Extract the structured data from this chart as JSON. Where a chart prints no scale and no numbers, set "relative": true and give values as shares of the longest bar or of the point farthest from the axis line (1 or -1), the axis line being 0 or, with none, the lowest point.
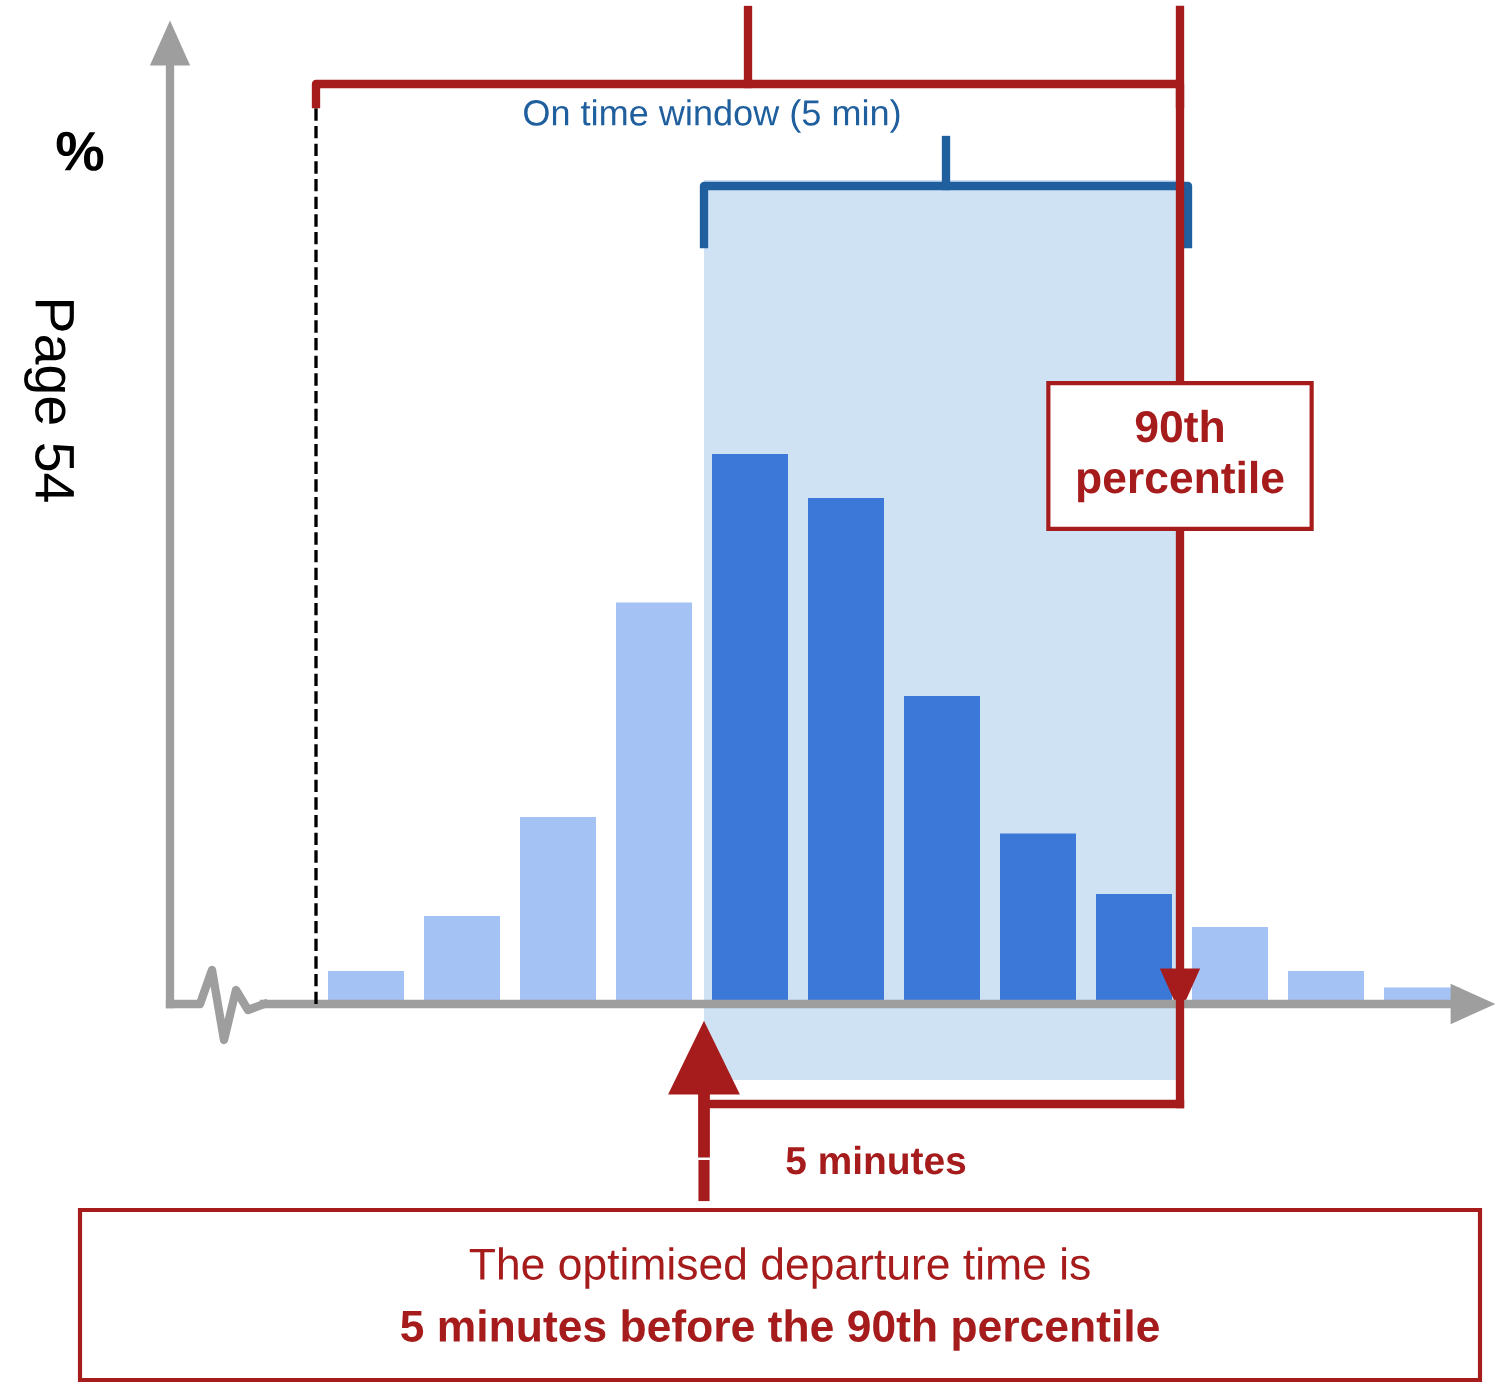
{
  "chart_data": {
    "type": "bar",
    "relative": true,
    "categories": [
      null,
      null,
      null,
      null,
      null,
      null,
      null,
      null,
      null,
      null,
      null,
      null
    ],
    "values": [
      0.06,
      0.16,
      0.34,
      0.73,
      1,
      0.92,
      0.56,
      0.31,
      0.2,
      0.14,
      0.06,
      0.03
    ],
    "colors": [
      "#a4c2f4",
      "#a4c2f4",
      "#a4c2f4",
      "#a4c2f4",
      "#3c78d8",
      "#3c78d8",
      "#3c78d8",
      "#3c78d8",
      "#3c78d8",
      "#a4c2f4",
      "#a4c2f4",
      "#a4c2f4"
    ],
    "annotations": [
      "%",
      "On time window (5 min)",
      "90th\npercentile",
      "5 minutes",
      "The optimised departure time is\n5 minutes before the 90th percentile",
      "Page 54"
    ],
    "grid": false,
    "legend": false
  }
}
